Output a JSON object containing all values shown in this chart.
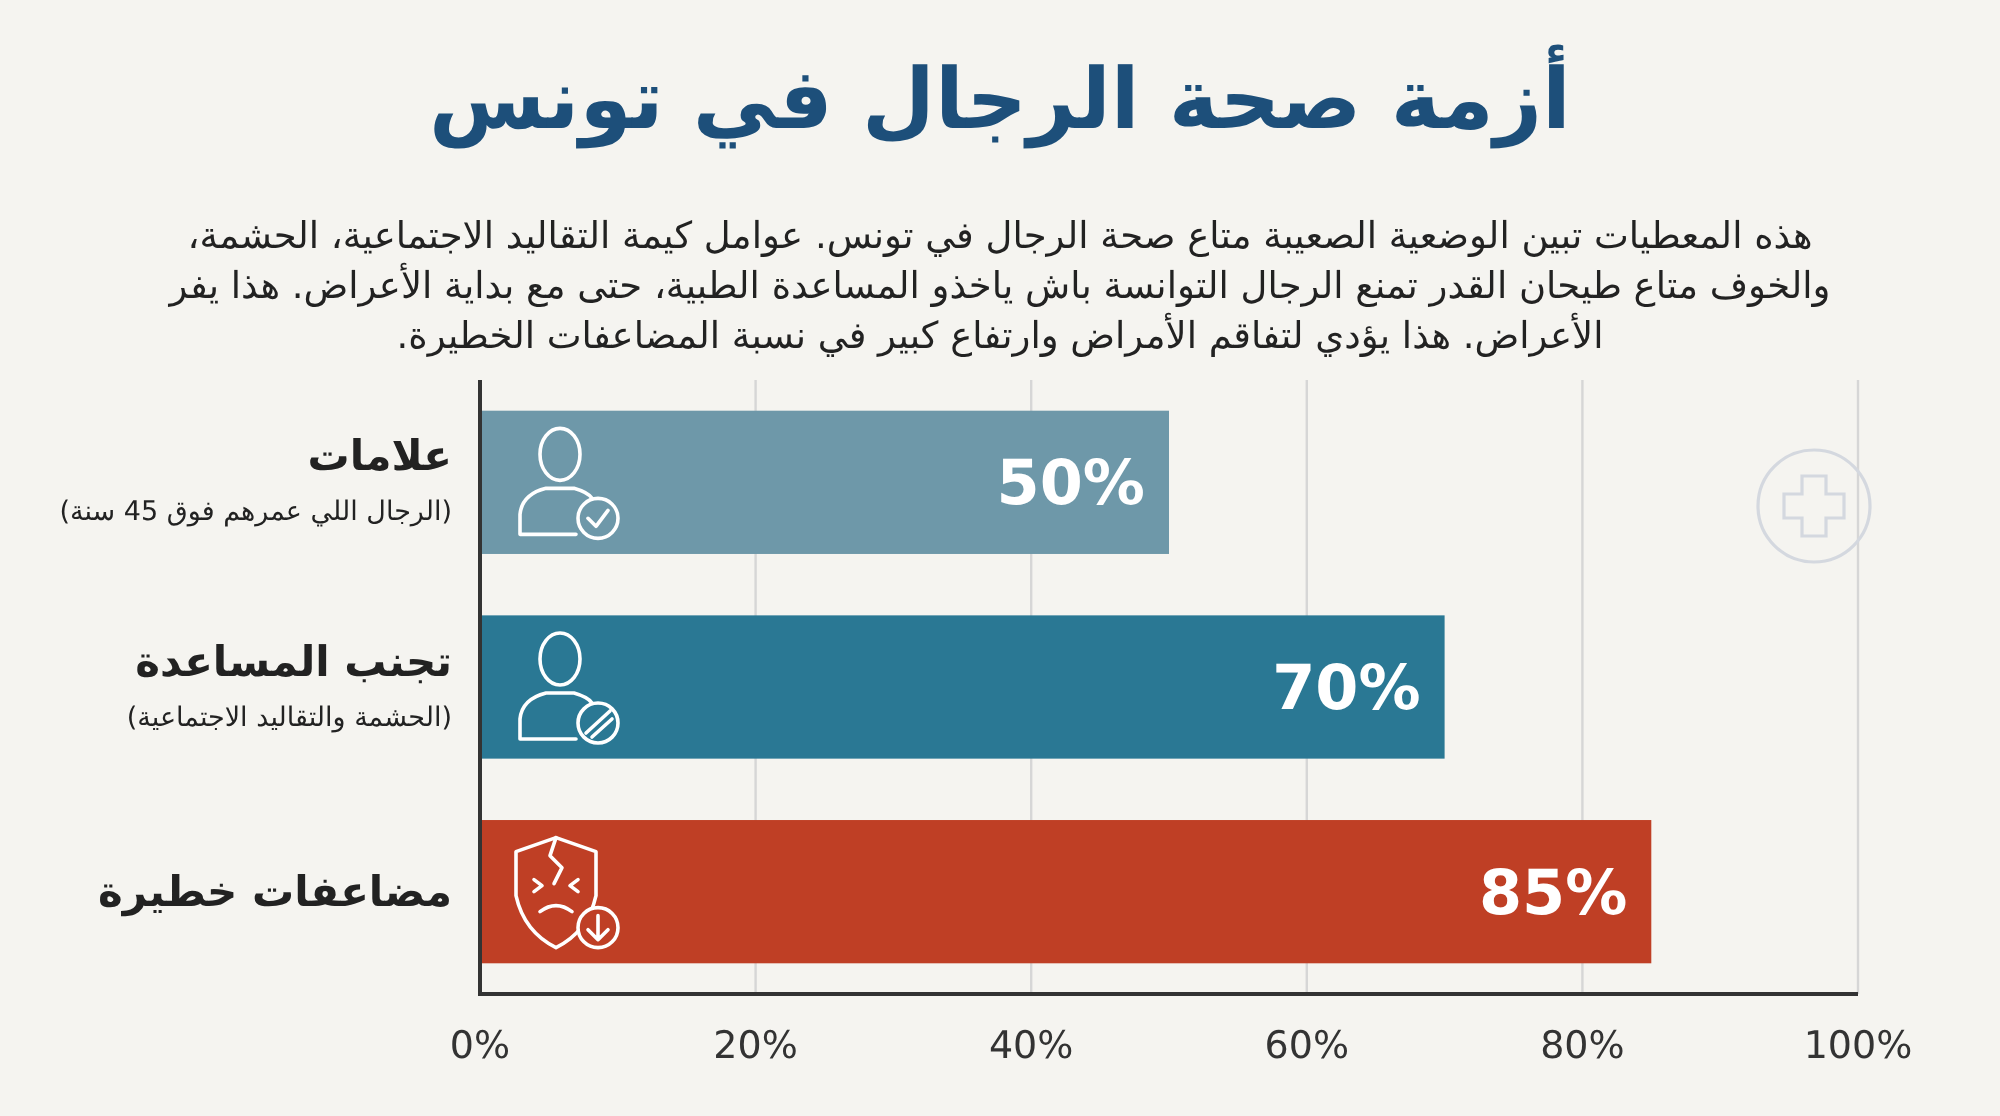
{
  "chart_data": {
    "type": "bar",
    "orientation": "horizontal",
    "title": "أزمة صحة الرجال في تونس",
    "subtitle": "هذه المعطيات تبين الوضعية الصعيبة متاع صحة الرجال في تونس. عوامل كيمة التقاليد الاجتماعية، الحشمة، والخوف متاع طيحان القدر تمنع الرجال التوانسة باش ياخذو المساعدة الطبية، حتى مع بداية الأعراض. هذا يفر الأعراض. هذا يؤدي لتفاقم الأمراض وارتفاع كبير في نسبة المضاعفات الخطيرة.",
    "categories": [
      "علامات\n(الرجال اللي عمرهم فوق 45 سنة)",
      "تجنب المساعدة\n(الحشمة والتقاليد الاجتماعية)",
      "مضاعفات خطيرة"
    ],
    "values": [
      50,
      70,
      85
    ],
    "colors": [
      "#6e98a9",
      "#2a7894",
      "#bf3f25"
    ],
    "value_labels": [
      "50%",
      "70%",
      "85%"
    ],
    "xlim": [
      0,
      100
    ],
    "xticks": [
      {
        "value": 0,
        "label": "0%"
      },
      {
        "value": 20,
        "label": "20%"
      },
      {
        "value": 40,
        "label": "40%"
      },
      {
        "value": 60,
        "label": "60%"
      },
      {
        "value": 80,
        "label": "80%"
      },
      {
        "value": 100,
        "label": "100%"
      }
    ],
    "grid": "x"
  }
}
